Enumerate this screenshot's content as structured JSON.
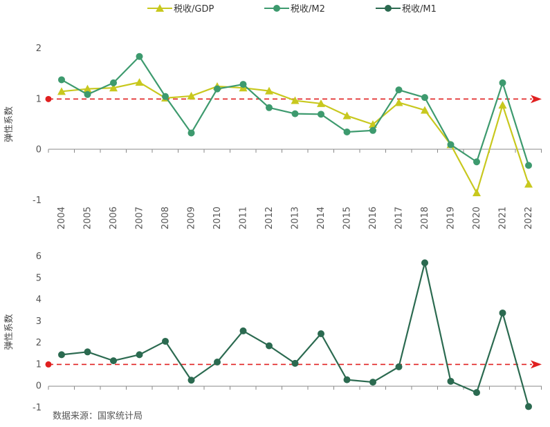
{
  "legend": [
    {
      "name": "税收/GDP",
      "color": "#c8c81e",
      "marker": "triangle"
    },
    {
      "name": "税收/M2",
      "color": "#3d9a6e",
      "marker": "circle"
    },
    {
      "name": "税收/M1",
      "color": "#2b6a50",
      "marker": "circle"
    }
  ],
  "source_note": "数据来源：国家统计局",
  "reference_line_color": "#e02020",
  "chart_data": [
    {
      "type": "line",
      "ylabel": "弹性系数",
      "ylim": [
        -1,
        2
      ],
      "yticks": [
        2,
        1,
        0,
        -1
      ],
      "reference_line": 1,
      "categories": [
        "2004",
        "2005",
        "2006",
        "2007",
        "2008",
        "2009",
        "2010",
        "2011",
        "2012",
        "2013",
        "2014",
        "2015",
        "2016",
        "2017",
        "2018",
        "2019",
        "2020",
        "2021",
        "2022"
      ],
      "series": [
        {
          "name": "税收/GDP",
          "color": "#c8c81e",
          "marker": "triangle",
          "values": [
            1.15,
            1.2,
            1.22,
            1.33,
            1.02,
            1.06,
            1.25,
            1.22,
            1.16,
            0.97,
            0.91,
            0.67,
            0.5,
            0.93,
            0.78,
            0.1,
            -0.85,
            0.88,
            -0.68
          ]
        },
        {
          "name": "税收/M2",
          "color": "#3d9a6e",
          "marker": "circle",
          "values": [
            1.38,
            1.09,
            1.32,
            1.84,
            1.05,
            0.33,
            1.2,
            1.29,
            0.83,
            0.71,
            0.7,
            0.35,
            0.38,
            1.18,
            1.03,
            0.1,
            -0.24,
            1.32,
            -0.31
          ]
        }
      ]
    },
    {
      "type": "line",
      "ylabel": "弹性系数",
      "ylim": [
        -1,
        6
      ],
      "yticks": [
        6,
        5,
        4,
        3,
        2,
        1,
        0,
        -1
      ],
      "reference_line": 1,
      "categories": [
        "2004",
        "2005",
        "2006",
        "2007",
        "2008",
        "2009",
        "2010",
        "2011",
        "2012",
        "2013",
        "2014",
        "2015",
        "2016",
        "2017",
        "2018",
        "2019",
        "2020",
        "2021",
        "2022"
      ],
      "series": [
        {
          "name": "税收/M1",
          "color": "#2b6a50",
          "marker": "circle",
          "values": [
            1.45,
            1.58,
            1.17,
            1.45,
            2.07,
            0.27,
            1.11,
            2.55,
            1.86,
            1.05,
            2.42,
            0.29,
            0.18,
            0.89,
            5.7,
            0.22,
            -0.3,
            3.38,
            -0.95
          ]
        }
      ]
    }
  ]
}
